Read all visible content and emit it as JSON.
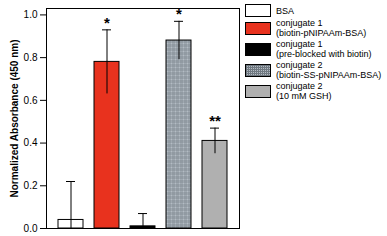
{
  "chart_data": {
    "type": "bar",
    "y_label": "Normalized Absorbance (450 nm)",
    "categories": [
      "BSA",
      "conjugate 1\n(biotin-pNIPAAm-BSA)",
      "conjugate 1\n(pre-blocked with biotin)",
      "conjugate 2\n(biotin-SS-pNIPAAm-BSA)",
      "conjugate 2\n(10 mM GSH)"
    ],
    "values": [
      0.04,
      0.78,
      0.01,
      0.88,
      0.41
    ],
    "errors": [
      0.18,
      0.15,
      0.06,
      0.09,
      0.06
    ],
    "significance": [
      null,
      "*",
      null,
      "*",
      "**"
    ],
    "colors": [
      "#ffffff",
      "#e8321e",
      "#000000",
      "#b4bcc4",
      "#b0b0b0"
    ],
    "ylim": [
      0,
      1.03
    ],
    "yticks": [
      {
        "value": 0,
        "label": "0.0"
      },
      {
        "value": 0.2,
        "label": "0.2"
      },
      {
        "value": 0.4,
        "label": "0.4"
      },
      {
        "value": 0.6,
        "label": "0.6"
      },
      {
        "value": 0.8,
        "label": "0.8"
      },
      {
        "value": 1,
        "label": "1.0"
      }
    ],
    "legend": "right",
    "tick_labels": "y",
    "grid": false
  }
}
